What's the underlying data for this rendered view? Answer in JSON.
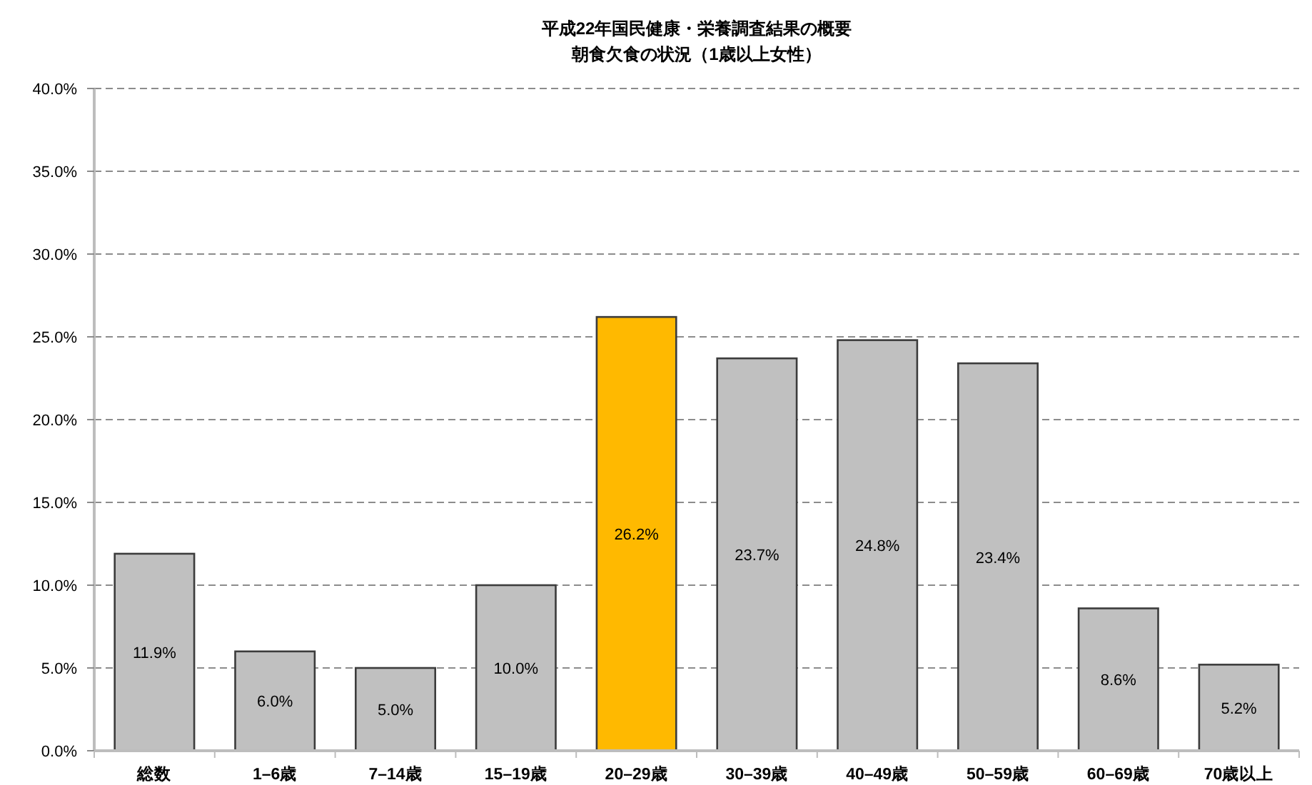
{
  "chart_data": {
    "type": "bar",
    "title": "平成22年国民健康・栄養調査結果の概要",
    "subtitle": "朝食欠食の状況（1歳以上女性）",
    "categories": [
      "総数",
      "1–6歳",
      "7–14歳",
      "15–19歳",
      "20–29歳",
      "30–39歳",
      "40–49歳",
      "50–59歳",
      "60–69歳",
      "70歳以上"
    ],
    "values": [
      11.9,
      6.0,
      5.0,
      10.0,
      26.2,
      23.7,
      24.8,
      23.4,
      8.6,
      5.2
    ],
    "colors": [
      "#c0c0c0",
      "#c0c0c0",
      "#c0c0c0",
      "#c0c0c0",
      "#ffb900",
      "#c0c0c0",
      "#c0c0c0",
      "#c0c0c0",
      "#c0c0c0",
      "#c0c0c0"
    ],
    "value_labels": [
      "11.9%",
      "6.0%",
      "5.0%",
      "10.0%",
      "26.2%",
      "23.7%",
      "24.8%",
      "23.4%",
      "8.6%",
      "5.2%"
    ],
    "ylim": [
      0,
      40
    ],
    "yticks": [
      {
        "value": 0,
        "label": "0.0%"
      },
      {
        "value": 5,
        "label": "5.0%"
      },
      {
        "value": 10,
        "label": "10.0%"
      },
      {
        "value": 15,
        "label": "15.0%"
      },
      {
        "value": 20,
        "label": "20.0%"
      },
      {
        "value": 25,
        "label": "25.0%"
      },
      {
        "value": 30,
        "label": "30.0%"
      },
      {
        "value": 35,
        "label": "35.0%"
      },
      {
        "value": 40,
        "label": "40.0%"
      }
    ],
    "grid": "y"
  }
}
